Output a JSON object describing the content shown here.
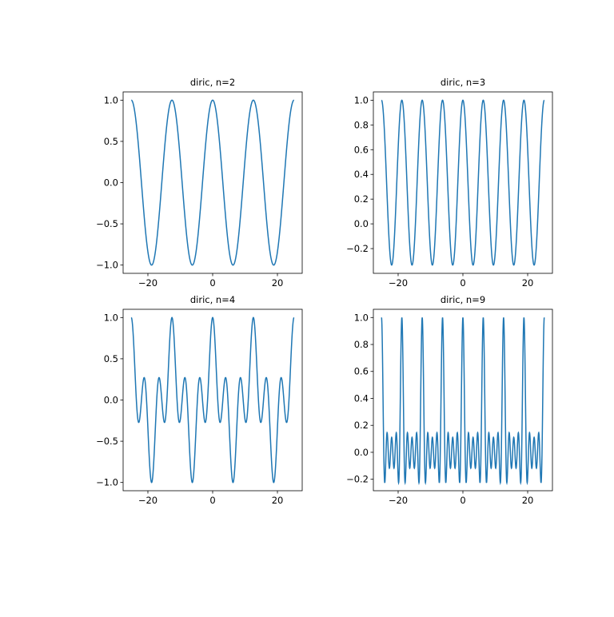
{
  "chart_data": [
    {
      "type": "line",
      "title": "diric, n=2",
      "function": "diric",
      "n": 2,
      "x_domain": [
        -25.133,
        25.133
      ],
      "xlim": [
        -27.65,
        27.65
      ],
      "ylim": [
        -1.1,
        1.1
      ],
      "xticks": [
        -20,
        0,
        20
      ],
      "xtick_labels": [
        "−20",
        "0",
        "20"
      ],
      "yticks": [
        -1,
        -0.5,
        0,
        0.5,
        1
      ],
      "ytick_labels": [
        "−1.0",
        "−0.5",
        "0.0",
        "0.5",
        "1.0"
      ],
      "color": "#1f77b4",
      "grid": false
    },
    {
      "type": "line",
      "title": "diric, n=3",
      "function": "diric",
      "n": 3,
      "x_domain": [
        -25.133,
        25.133
      ],
      "xlim": [
        -27.65,
        27.65
      ],
      "ylim": [
        -0.4,
        1.067
      ],
      "xticks": [
        -20,
        0,
        20
      ],
      "xtick_labels": [
        "−20",
        "0",
        "20"
      ],
      "yticks": [
        -0.2,
        0,
        0.2,
        0.4,
        0.6,
        0.8,
        1.0
      ],
      "ytick_labels": [
        "−0.2",
        "0.0",
        "0.2",
        "0.4",
        "0.6",
        "0.8",
        "1.0"
      ],
      "color": "#1f77b4",
      "grid": false
    },
    {
      "type": "line",
      "title": "diric, n=4",
      "function": "diric",
      "n": 4,
      "x_domain": [
        -25.133,
        25.133
      ],
      "xlim": [
        -27.65,
        27.65
      ],
      "ylim": [
        -1.1,
        1.1
      ],
      "xticks": [
        -20,
        0,
        20
      ],
      "xtick_labels": [
        "−20",
        "0",
        "20"
      ],
      "yticks": [
        -1,
        -0.5,
        0,
        0.5,
        1
      ],
      "ytick_labels": [
        "−1.0",
        "−0.5",
        "0.0",
        "0.5",
        "1.0"
      ],
      "color": "#1f77b4",
      "grid": false
    },
    {
      "type": "line",
      "title": "diric, n=9",
      "function": "diric",
      "n": 9,
      "x_domain": [
        -25.133,
        25.133
      ],
      "xlim": [
        -27.65,
        27.65
      ],
      "ylim": [
        -0.285,
        1.061
      ],
      "xticks": [
        -20,
        0,
        20
      ],
      "xtick_labels": [
        "−20",
        "0",
        "20"
      ],
      "yticks": [
        -0.2,
        0,
        0.2,
        0.4,
        0.6,
        0.8,
        1.0
      ],
      "ytick_labels": [
        "−0.2",
        "0.0",
        "0.2",
        "0.4",
        "0.6",
        "0.8",
        "1.0"
      ],
      "color": "#1f77b4",
      "grid": false
    }
  ]
}
